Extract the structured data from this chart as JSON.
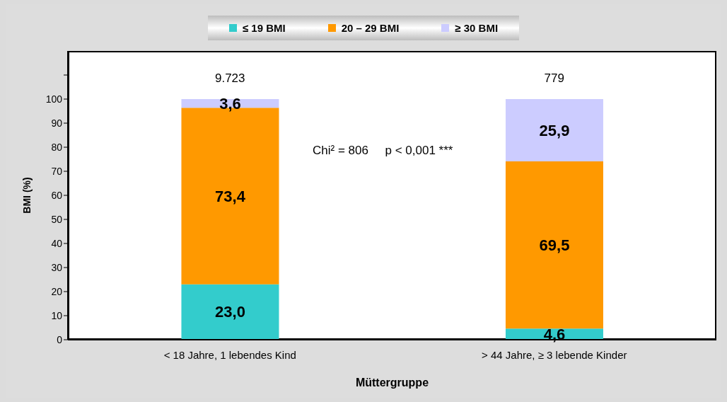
{
  "chart_data": {
    "type": "bar",
    "stacked": true,
    "categories": [
      "< 18 Jahre, 1 lebendes Kind",
      "> 44 Jahre, ≥ 3 lebende Kinder"
    ],
    "series": [
      {
        "name": "≤ 19 BMI",
        "color": "#33cccc",
        "values": [
          23.0,
          4.6
        ],
        "value_labels": [
          "23,0",
          "4,6"
        ]
      },
      {
        "name": "20 – 29 BMI",
        "color": "#ff9900",
        "values": [
          73.4,
          69.5
        ],
        "value_labels": [
          "73,4",
          "69,5"
        ]
      },
      {
        "name": "≥ 30 BMI",
        "color": "#ccccff",
        "values": [
          3.6,
          25.9
        ],
        "value_labels": [
          "3,6",
          "25,9"
        ]
      }
    ],
    "xlabel": "Müttergruppe",
    "ylabel": "BMI (%)",
    "ylim": [
      0,
      120
    ],
    "yticks": [
      0,
      10,
      20,
      30,
      40,
      50,
      60,
      70,
      80,
      90,
      100,
      {
        "value": 110,
        "label": null
      }
    ],
    "legend": "top",
    "annotations": [
      "9.723",
      "779",
      "Chi² = 806     p < 0,001 ***"
    ]
  }
}
